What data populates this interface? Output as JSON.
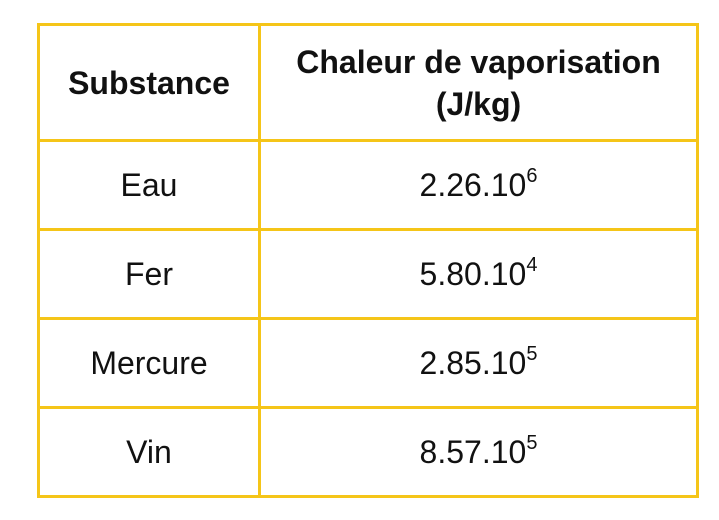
{
  "table": {
    "header": {
      "col1": "Substance",
      "col2_line1": "Chaleur de vaporisation",
      "col2_line2": "(J/kg)"
    },
    "rows": [
      {
        "substance": "Eau",
        "mantissa": "2.26.10",
        "exponent": "6"
      },
      {
        "substance": "Fer",
        "mantissa": "5.80.10",
        "exponent": "4"
      },
      {
        "substance": "Mercure",
        "mantissa": "2.85.10",
        "exponent": "5"
      },
      {
        "substance": "Vin",
        "mantissa": "8.57.10",
        "exponent": "5"
      }
    ],
    "border_color": "#f5c518"
  }
}
